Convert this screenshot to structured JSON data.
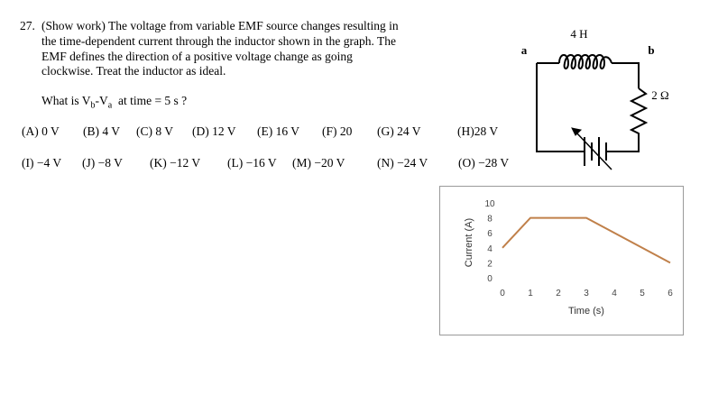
{
  "question": {
    "number": "27.",
    "lines": [
      "(Show work) The voltage from variable EMF source changes resulting in",
      "the time-dependent current through the inductor shown in the graph.  The",
      "EMF defines the direction of a positive voltage change as going",
      "clockwise. Treat the inductor as ideal."
    ],
    "ask_prefix": "What is V",
    "ask_sub_b": "b",
    "ask_mid": "-V",
    "ask_sub_a": "a",
    "ask_suffix": "  at time = 5 s ?"
  },
  "choices": {
    "row1": [
      "(A) 0 V",
      "(B) 4 V",
      "(C) 8 V",
      "(D) 12 V",
      "(E) 16 V",
      "(F) 20",
      "(G) 24 V",
      "(H)28 V"
    ],
    "row2": [
      "(I) −4 V",
      "(J) −8 V",
      "(K) −12 V",
      "(L) −16 V",
      "(M) −20 V",
      "(N) −24 V",
      "(O) −28 V"
    ]
  },
  "circuit": {
    "inductor_label": "4 H",
    "resistor_label": "2 Ω",
    "node_a": "a",
    "node_b": "b",
    "colors": {
      "wire": "#000000"
    }
  },
  "chart_data": {
    "type": "line",
    "x": [
      0,
      1,
      3,
      6
    ],
    "y": [
      4,
      8,
      8,
      2
    ],
    "xlabel": "Time (s)",
    "ylabel": "Current (A)",
    "xlim": [
      0,
      6
    ],
    "ylim": [
      0,
      10
    ],
    "xticks": [
      "0",
      "1",
      "2",
      "3",
      "4",
      "5",
      "6"
    ],
    "yticks": [
      "0",
      "2",
      "4",
      "6",
      "8",
      "10"
    ],
    "grid": false,
    "line_color": "#c0804a"
  }
}
